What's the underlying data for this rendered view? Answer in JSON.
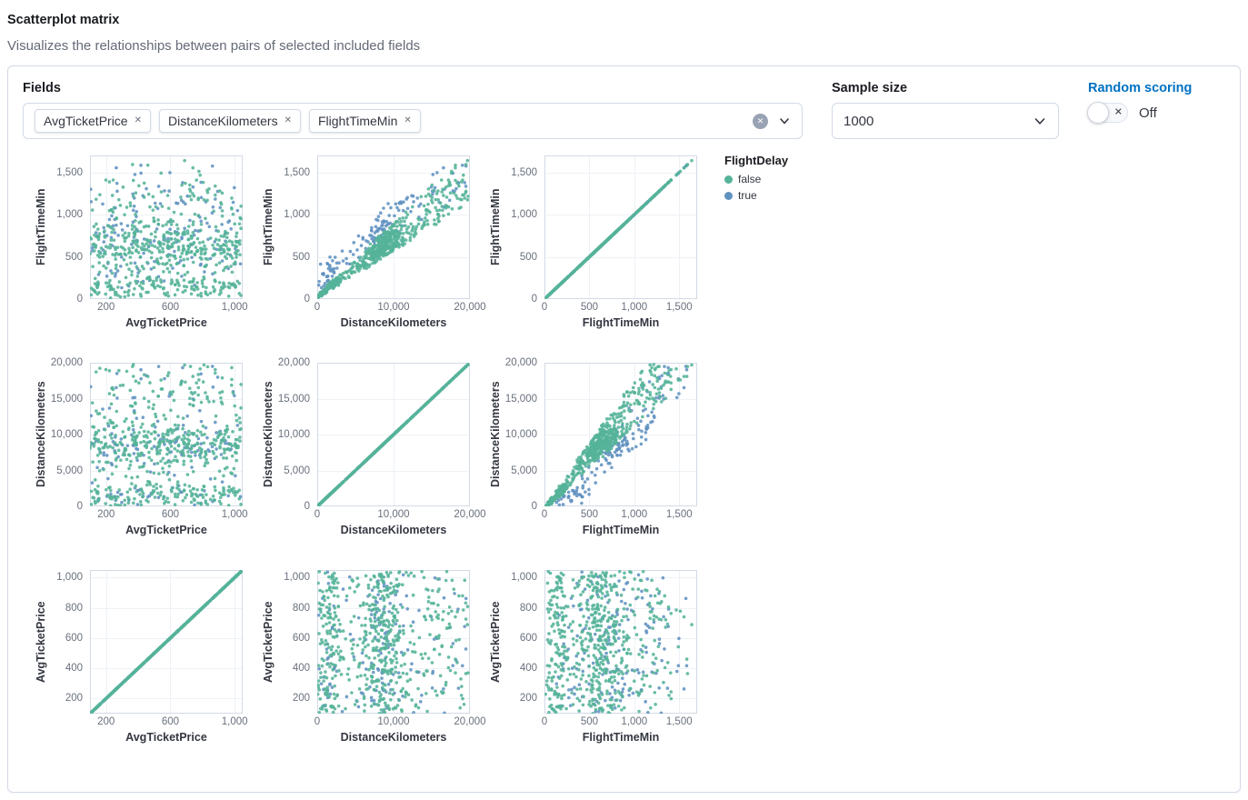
{
  "header": {
    "title": "Scatterplot matrix",
    "subtitle": "Visualizes the relationships between pairs of selected included fields"
  },
  "controls": {
    "fields": {
      "label": "Fields",
      "selected": [
        "AvgTicketPrice",
        "DistanceKilometers",
        "FlightTimeMin"
      ],
      "remove_icon": "✕",
      "clear_icon": "✕"
    },
    "sample_size": {
      "label": "Sample size",
      "value": "1000"
    },
    "random_scoring": {
      "label": "Random scoring",
      "state_label": "Off",
      "toggle_icon": "✕"
    }
  },
  "legend": {
    "title": "FlightDelay",
    "items": [
      {
        "label": "false",
        "color": "#54b399"
      },
      {
        "label": "true",
        "color": "#6092c0"
      }
    ]
  },
  "matrix": {
    "type": "scatter",
    "color_by": "FlightDelay",
    "colors": {
      "false": "#54b399",
      "true": "#6092c0"
    },
    "row_fields": [
      "FlightTimeMin",
      "DistanceKilometers",
      "AvgTicketPrice"
    ],
    "col_fields": [
      "AvgTicketPrice",
      "DistanceKilometers",
      "FlightTimeMin"
    ],
    "axes": {
      "AvgTicketPrice": {
        "domain": [
          100,
          1050
        ],
        "x_ticks": [
          {
            "v": 200,
            "label": "200"
          },
          {
            "v": 600,
            "label": "600"
          },
          {
            "v": 1000,
            "label": "1,000"
          }
        ],
        "y_ticks": [
          {
            "v": 200,
            "label": "200"
          },
          {
            "v": 400,
            "label": "400"
          },
          {
            "v": 600,
            "label": "600"
          },
          {
            "v": 800,
            "label": "800"
          },
          {
            "v": 1000,
            "label": "1,000"
          }
        ]
      },
      "DistanceKilometers": {
        "domain": [
          0,
          20000
        ],
        "x_ticks": [
          {
            "v": 0,
            "label": "0"
          },
          {
            "v": 10000,
            "label": "10,000"
          },
          {
            "v": 20000,
            "label": "20,000"
          }
        ],
        "y_ticks": [
          {
            "v": 0,
            "label": "0"
          },
          {
            "v": 5000,
            "label": "5,000"
          },
          {
            "v": 10000,
            "label": "10,000"
          },
          {
            "v": 15000,
            "label": "15,000"
          },
          {
            "v": 20000,
            "label": "20,000"
          }
        ]
      },
      "FlightTimeMin": {
        "domain": [
          0,
          1700
        ],
        "x_ticks": [
          {
            "v": 0,
            "label": "0"
          },
          {
            "v": 500,
            "label": "500"
          },
          {
            "v": 1000,
            "label": "1,000"
          },
          {
            "v": 1500,
            "label": "1,500"
          }
        ],
        "y_ticks": [
          {
            "v": 0,
            "label": "0"
          },
          {
            "v": 500,
            "label": "500"
          },
          {
            "v": 1000,
            "label": "1,000"
          },
          {
            "v": 1500,
            "label": "1,500"
          }
        ]
      }
    }
  }
}
